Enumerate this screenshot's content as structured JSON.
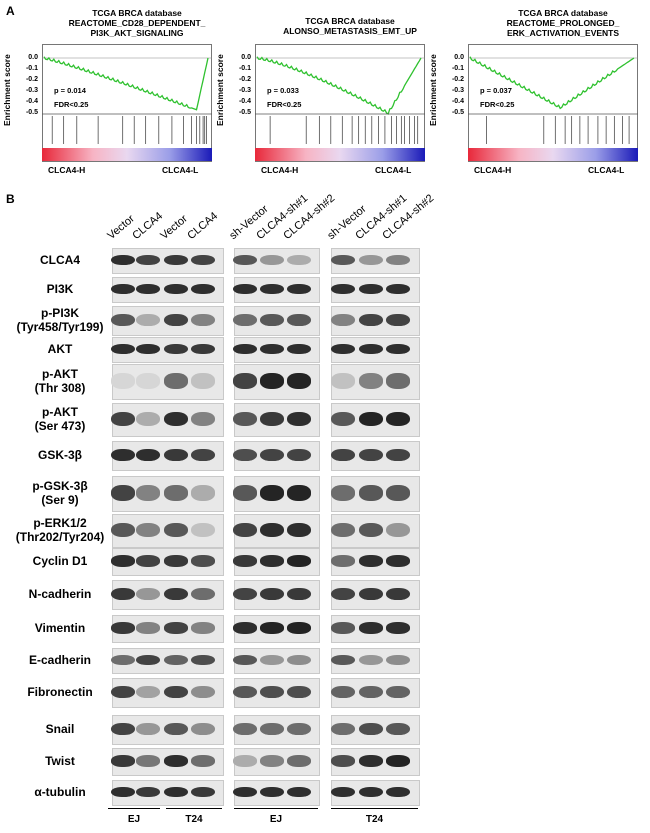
{
  "panel_a": {
    "letter": "A",
    "plots": [
      {
        "title_lines": [
          "TCGA BRCA database",
          "REACTOME_CD28_DEPENDENT_",
          "PI3K_AKT_SIGNALING"
        ],
        "p_value": "p = 0.014",
        "fdr": "FDR<0.25",
        "ylabel": "Enrichment score",
        "yticks": [
          "0.0",
          "-0.1",
          "-0.2",
          "-0.3",
          "-0.4",
          "-0.5"
        ],
        "group_left": "CLCA4-H",
        "group_right": "CLCA4-L"
      },
      {
        "title_lines": [
          "TCGA BRCA database",
          "ALONSO_METASTASIS_EMT_UP"
        ],
        "p_value": "p = 0.033",
        "fdr": "FDR<0.25",
        "ylabel": "Enrichment score",
        "yticks": [
          "0.0",
          "-0.1",
          "-0.2",
          "-0.3",
          "-0.4",
          "-0.5"
        ],
        "group_left": "CLCA4-H",
        "group_right": "CLCA4-L"
      },
      {
        "title_lines": [
          "TCGA BRCA database",
          "REACTOME_PROLONGED_",
          "ERK_ACTIVATION_EVENTS"
        ],
        "p_value": "p = 0.037",
        "fdr": "FDR<0.25",
        "ylabel": "Enrichment score",
        "yticks": [
          "0.0",
          "-0.1",
          "-0.2",
          "-0.3",
          "-0.4",
          "-0.5"
        ],
        "group_left": "CLCA4-H",
        "group_right": "CLCA4-L"
      }
    ]
  },
  "panel_b": {
    "letter": "B",
    "column_labels": [
      "Vector",
      "CLCA4",
      "Vector",
      "CLCA4",
      "sh-Vector",
      "CLCA4-sh#1",
      "CLCA4-sh#2",
      "sh-Vector",
      "CLCA4-sh#1",
      "CLCA4-sh#2"
    ],
    "cell_lines": [
      "EJ",
      "T24",
      "EJ",
      "T24"
    ],
    "rows": [
      {
        "lines": [
          "CLCA4"
        ]
      },
      {
        "lines": [
          "PI3K"
        ]
      },
      {
        "lines": [
          "p-PI3K",
          "(Tyr458/Tyr199)"
        ]
      },
      {
        "lines": [
          "AKT"
        ]
      },
      {
        "lines": [
          "p-AKT",
          "(Thr 308)"
        ]
      },
      {
        "lines": [
          "p-AKT",
          "(Ser 473)"
        ]
      },
      {
        "lines": [
          "GSK-3β"
        ]
      },
      {
        "lines": [
          "p-GSK-3β",
          "(Ser 9)"
        ]
      },
      {
        "lines": [
          "p-ERK1/2",
          "(Thr202/Tyr204)"
        ]
      },
      {
        "lines": [
          "Cyclin D1"
        ]
      },
      {
        "lines": [
          "N-cadherin"
        ]
      },
      {
        "lines": [
          "Vimentin"
        ]
      },
      {
        "lines": [
          "E-cadherin"
        ]
      },
      {
        "lines": [
          "Fibronectin"
        ]
      },
      {
        "lines": [
          "Snail"
        ]
      },
      {
        "lines": [
          "Twist"
        ]
      },
      {
        "lines": [
          "α-tubulin"
        ]
      }
    ]
  }
}
